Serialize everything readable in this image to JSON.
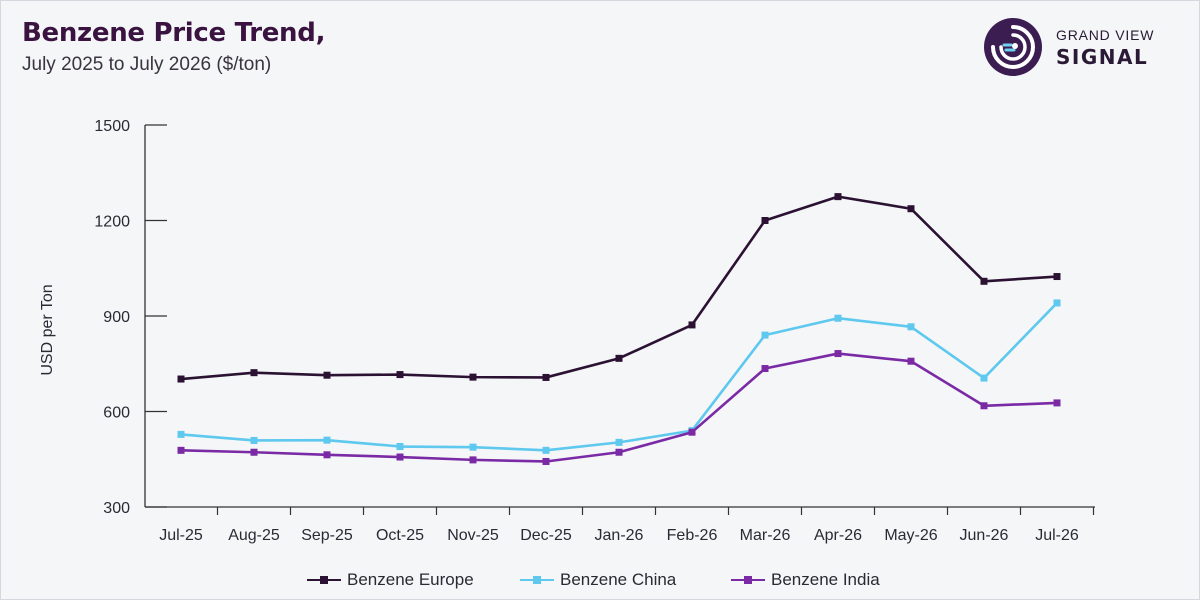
{
  "header": {
    "title": "Benzene Price Trend,",
    "subtitle": "July 2025 to July 2026 ($/ton)"
  },
  "logo": {
    "line1": "GRAND VIEW",
    "line2": "SIGNAL",
    "icon": "signal-radar-icon",
    "color": "#3b1d52"
  },
  "chart_data": {
    "type": "line",
    "ylabel": "USD per Ton",
    "xlabel": "",
    "ylim": [
      300,
      1500
    ],
    "yticks": [
      300,
      600,
      900,
      1200,
      1500
    ],
    "grid": false,
    "legend_position": "bottom",
    "categories": [
      "Jul-25",
      "Aug-25",
      "Sep-25",
      "Oct-25",
      "Nov-25",
      "Dec-25",
      "Jan-26",
      "Feb-26",
      "Mar-26",
      "Apr-26",
      "May-26",
      "Jun-26",
      "Jul-26"
    ],
    "series": [
      {
        "name": "Benzene Europe",
        "color": "#2b1233",
        "values": [
          702,
          722,
          714,
          716,
          708,
          707,
          767,
          872,
          1200,
          1275,
          1237,
          1009,
          1024
        ]
      },
      {
        "name": "Benzene China",
        "color": "#5ec8ee",
        "values": [
          528,
          509,
          510,
          490,
          488,
          478,
          503,
          540,
          840,
          893,
          866,
          705,
          941
        ]
      },
      {
        "name": "Benzene India",
        "color": "#7b2aa5",
        "values": [
          478,
          472,
          464,
          457,
          448,
          443,
          472,
          535,
          735,
          782,
          758,
          618,
          627
        ]
      }
    ]
  }
}
